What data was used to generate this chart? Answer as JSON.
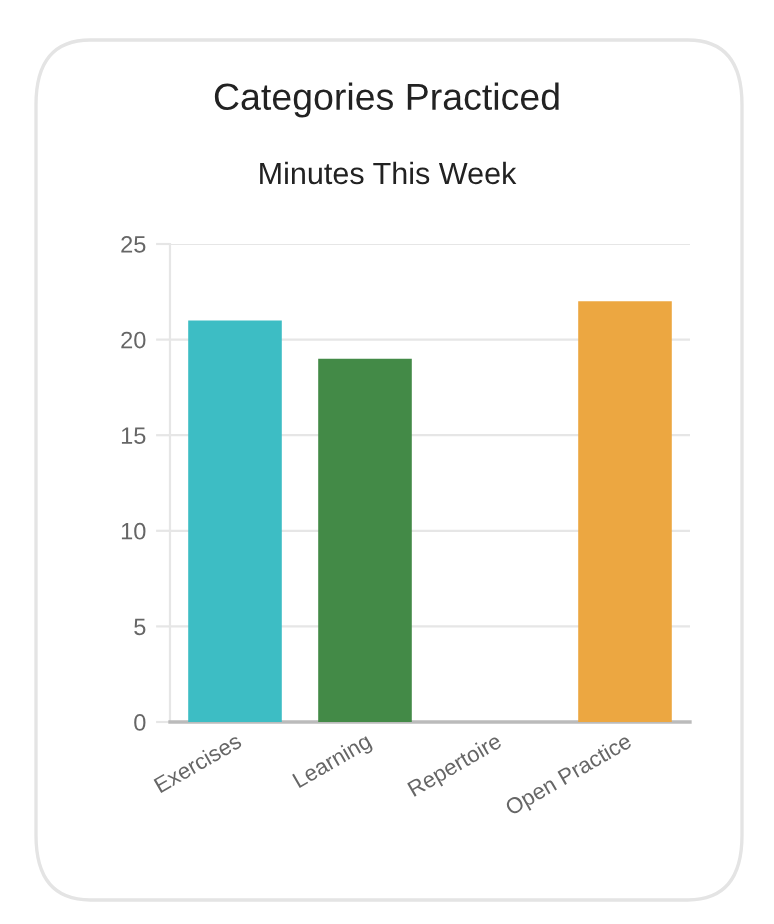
{
  "chart_data": {
    "type": "bar",
    "title": "Categories Practiced",
    "subtitle": "Minutes This Week",
    "categories": [
      "Exercises",
      "Learning",
      "Repertoire",
      "Open Practice"
    ],
    "values": [
      21,
      19,
      0,
      22
    ],
    "colors": [
      "#3dbdc4",
      "#438a47",
      "#9e9e9e",
      "#eca741"
    ],
    "ylim": [
      0,
      25
    ],
    "yticks": [
      0,
      5,
      10,
      15,
      20,
      25
    ],
    "grid": "y"
  }
}
